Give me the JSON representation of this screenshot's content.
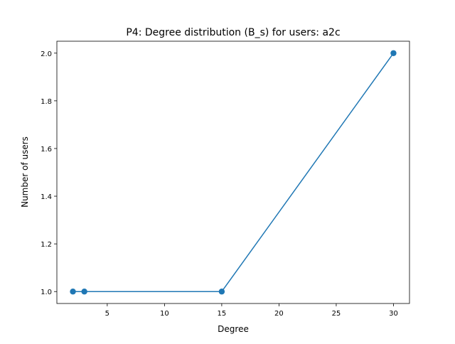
{
  "chart_data": {
    "type": "line",
    "title": "P4: Degree distribution (B_s) for users: a2c",
    "xlabel": "Degree",
    "ylabel": "Number of users",
    "x": [
      2,
      3,
      15,
      30
    ],
    "series": [
      {
        "values": [
          1.0,
          1.0,
          1.0,
          2.0
        ],
        "color": "#1f77b4",
        "marker": "circle"
      }
    ],
    "xlim": [
      0.6,
      31.4
    ],
    "ylim": [
      0.95,
      2.05
    ],
    "xticks": [
      5,
      10,
      15,
      20,
      25,
      30
    ],
    "yticks": [
      1.0,
      1.2,
      1.4,
      1.6,
      1.8,
      2.0
    ],
    "xtick_labels": [
      "5",
      "10",
      "15",
      "20",
      "25",
      "30"
    ],
    "ytick_labels": [
      "1.0",
      "1.2",
      "1.4",
      "1.6",
      "1.8",
      "2.0"
    ],
    "grid": false,
    "legend": false
  }
}
